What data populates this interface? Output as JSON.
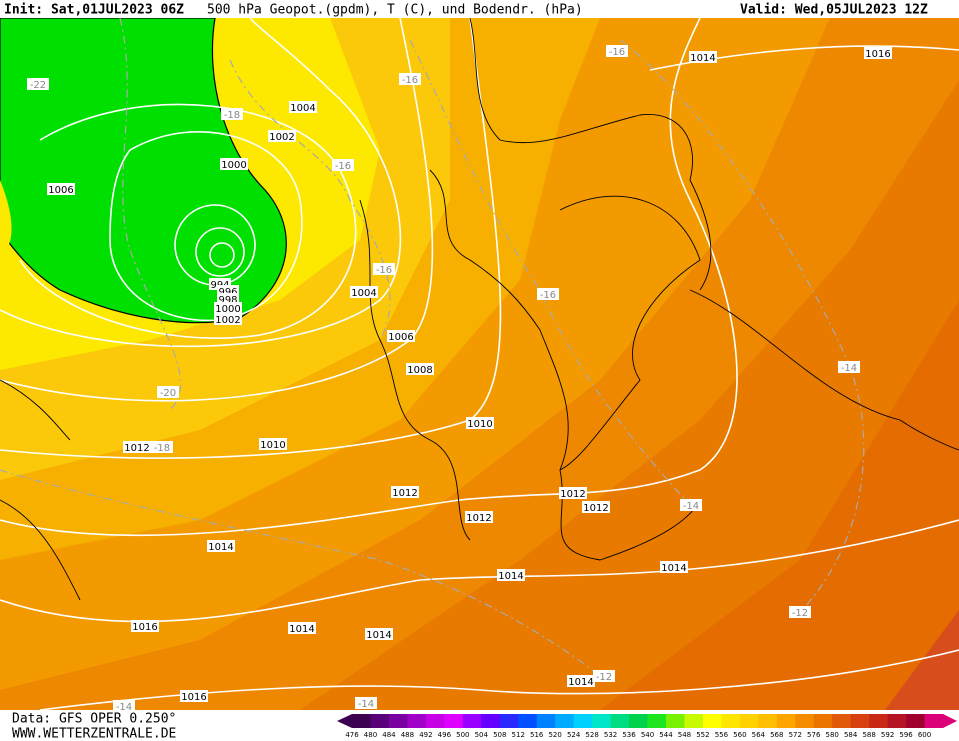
{
  "header": {
    "init": "Init: Sat,01JUL2023 06Z",
    "title": "500 hPa Geopot.(gpdm), T (C), und Bodendr. (hPa)",
    "valid": "Valid: Wed,05JUL2023 12Z"
  },
  "footer": {
    "source": "Data: GFS OPER 0.250°",
    "website": "WWW.WETTERZENTRALE.DE"
  },
  "legend": {
    "labels": [
      "476",
      "480",
      "484",
      "488",
      "492",
      "496",
      "500",
      "504",
      "508",
      "512",
      "516",
      "520",
      "524",
      "528",
      "532",
      "536",
      "540",
      "544",
      "548",
      "552",
      "556",
      "560",
      "564",
      "568",
      "572",
      "576",
      "580",
      "584",
      "588",
      "592",
      "596",
      "600"
    ],
    "colors": [
      "#3c0050",
      "#5a0078",
      "#7a00a0",
      "#a000c8",
      "#c800e6",
      "#e000ff",
      "#9a00ff",
      "#6400ff",
      "#2828ff",
      "#0050ff",
      "#0082ff",
      "#00aaff",
      "#00d2ff",
      "#00e6c8",
      "#00dc82",
      "#00d24b",
      "#1ee61e",
      "#78f000",
      "#c8fa00",
      "#ffff00",
      "#ffe600",
      "#ffd200",
      "#ffbe00",
      "#ffa500",
      "#f58c00",
      "#eb7300",
      "#e15a0a",
      "#d7410f",
      "#c82814",
      "#b41423",
      "#a0002d",
      "#dc0078"
    ]
  },
  "isobar_labels": [
    "1014",
    "1016",
    "1004",
    "1002",
    "1000",
    "1006",
    "994",
    "996",
    "998",
    "1000",
    "1002",
    "1004",
    "1006",
    "1008",
    "1010",
    "1010",
    "1012",
    "1012",
    "1012",
    "1012",
    "1012",
    "1014",
    "1014",
    "1014",
    "1016",
    "1014",
    "1014",
    "1014",
    "1016"
  ],
  "temperature_labels": [
    "-22",
    "-18",
    "-16",
    "-16",
    "-16",
    "-16",
    "-16",
    "-14",
    "-20",
    "-18",
    "-14",
    "-12",
    "-12",
    "-14",
    "-14"
  ]
}
